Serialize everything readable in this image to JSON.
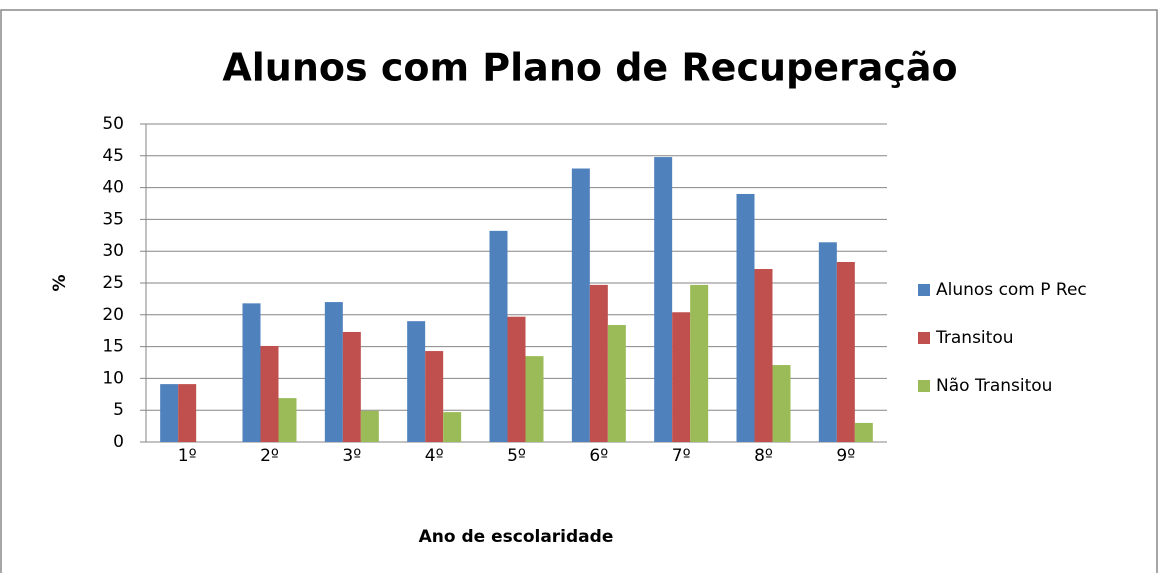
{
  "chart_data": {
    "type": "bar",
    "title": "Alunos com Plano de Recuperação",
    "x_label": "Ano de escolaridade",
    "y_label": "%",
    "categories": [
      "1º",
      "2º",
      "3º",
      "4º",
      "5º",
      "6º",
      "7º",
      "8º",
      "9º"
    ],
    "series": [
      {
        "name": "Alunos com P Rec",
        "color": "#4f81bd",
        "values": [
          9.1,
          21.8,
          22,
          19,
          33.2,
          43,
          44.8,
          39,
          31.4
        ]
      },
      {
        "name": "Transitou",
        "color": "#c0504d",
        "values": [
          9.1,
          15.1,
          17.3,
          14.3,
          19.7,
          24.7,
          20.4,
          27.2,
          28.3
        ]
      },
      {
        "name": "Não Transitou",
        "color": "#9bbb59",
        "values": [
          0,
          6.9,
          4.9,
          4.7,
          13.5,
          18.4,
          24.7,
          12.1,
          3
        ]
      }
    ],
    "ylim": [
      0,
      50
    ],
    "yticks": [
      0,
      5,
      10,
      15,
      20,
      25,
      30,
      35,
      40,
      45,
      50
    ],
    "grid": true,
    "legend": "right"
  }
}
